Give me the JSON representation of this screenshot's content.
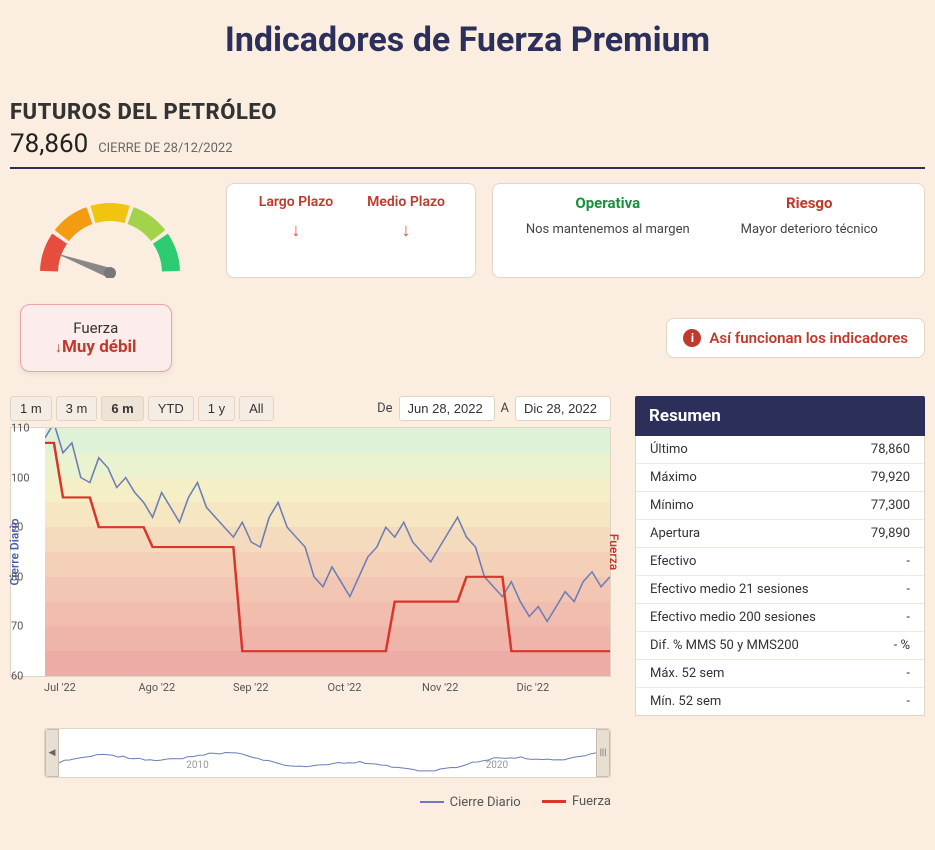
{
  "page_title": "Indicadores de Fuerza Premium",
  "instrument": "FUTUROS DEL PETRÓLEO",
  "price": "78,860",
  "close_label": "CIERRE DE 28/12/2022",
  "trend": {
    "largo_label": "Largo Plazo",
    "medio_label": "Medio Plazo",
    "largo_dir": "down",
    "medio_dir": "down"
  },
  "operativa": {
    "op_label": "Operativa",
    "op_value": "Nos mantenemos al margen",
    "risk_label": "Riesgo",
    "risk_value": "Mayor deterioro técnico"
  },
  "fuerza": {
    "title": "Fuerza",
    "value": "Muy débil"
  },
  "info_link": "Así funcionan los indicadores",
  "ranges": [
    "1 m",
    "3 m",
    "6 m",
    "YTD",
    "1 y",
    "All"
  ],
  "range_active_index": 2,
  "date_from_label": "De",
  "date_from": "Jun 28, 2022",
  "date_to_label": "A",
  "date_to": "Dic 28, 2022",
  "chart": {
    "y_title_left": "Cierre Diario",
    "y_title_right": "Fuerza",
    "ylim": [
      60,
      110
    ],
    "yticks": [
      60,
      70,
      80,
      90,
      100,
      110
    ],
    "x_labels": [
      "Jul '22",
      "Ago '22",
      "Sep '22",
      "Oct '22",
      "Nov '22",
      "Dic '22"
    ],
    "band_colors": [
      "#def2d8",
      "#eaf2cf",
      "#f5efc8",
      "#f7e6c2",
      "#f5dbbd",
      "#f4d0b8",
      "#f2c6b3",
      "#f0bdae",
      "#efb4aa",
      "#eeaca6"
    ],
    "cierre_color": "#6b7db8",
    "fuerza_color": "#d9362a",
    "cierre_series": [
      108,
      111,
      105,
      107,
      100,
      99,
      104,
      102,
      98,
      100,
      97,
      95,
      92,
      97,
      94,
      91,
      96,
      99,
      94,
      92,
      90,
      88,
      91,
      87,
      86,
      92,
      95,
      90,
      88,
      86,
      80,
      78,
      82,
      79,
      76,
      80,
      84,
      86,
      90,
      88,
      91,
      87,
      85,
      83,
      86,
      89,
      92,
      88,
      86,
      80,
      78,
      76,
      79,
      75,
      72,
      74,
      71,
      74,
      77,
      75,
      79,
      81,
      78,
      80
    ],
    "fuerza_series": [
      107,
      107,
      96,
      96,
      96,
      96,
      90,
      90,
      90,
      90,
      90,
      90,
      86,
      86,
      86,
      86,
      86,
      86,
      86,
      86,
      86,
      86,
      65,
      65,
      65,
      65,
      65,
      65,
      65,
      65,
      65,
      65,
      65,
      65,
      65,
      65,
      65,
      65,
      65,
      75,
      75,
      75,
      75,
      75,
      75,
      75,
      75,
      80,
      80,
      80,
      80,
      80,
      65,
      65,
      65,
      65,
      65,
      65,
      65,
      65,
      65,
      65,
      65,
      65
    ]
  },
  "navigator": {
    "labels": [
      "2010",
      "2020"
    ]
  },
  "legend": {
    "cierre": "Cierre Diario",
    "fuerza": "Fuerza"
  },
  "summary": {
    "header": "Resumen",
    "rows": [
      {
        "k": "Último",
        "v": "78,860"
      },
      {
        "k": "Máximo",
        "v": "79,920"
      },
      {
        "k": "Mínimo",
        "v": "77,300"
      },
      {
        "k": "Apertura",
        "v": "79,890"
      },
      {
        "k": "Efectivo",
        "v": "-"
      },
      {
        "k": "Efectivo medio 21 sesiones",
        "v": "-"
      },
      {
        "k": "Efectivo medio 200 sesiones",
        "v": "-"
      },
      {
        "k": "Dif. % MMS 50 y MMS200",
        "v": "- %"
      },
      {
        "k": "Máx. 52 sem",
        "v": "-"
      },
      {
        "k": "Mín. 52 sem",
        "v": "-"
      }
    ]
  },
  "gauge": {
    "colors": [
      "#e74c3c",
      "#f39c12",
      "#f1c40f",
      "#a3d24b",
      "#2ecc71"
    ],
    "needle_angle_deg": 200
  }
}
